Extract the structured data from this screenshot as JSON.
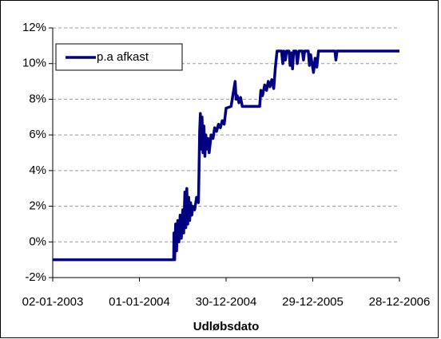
{
  "chart_data": {
    "type": "line",
    "x_label": "Udløbsdato",
    "x": [
      "2003-01-02",
      "2004-05-24",
      "2004-05-25",
      "2004-05-28",
      "2004-06-01",
      "2004-06-05",
      "2004-06-10",
      "2004-06-15",
      "2004-06-20",
      "2004-06-25",
      "2004-07-01",
      "2004-07-05",
      "2004-07-10",
      "2004-07-14",
      "2004-07-18",
      "2004-07-22",
      "2004-07-26",
      "2004-07-30",
      "2004-08-03",
      "2004-08-08",
      "2004-08-12",
      "2004-08-20",
      "2004-08-28",
      "2004-09-05",
      "2004-09-10",
      "2004-09-13",
      "2004-09-16",
      "2004-09-20",
      "2004-09-24",
      "2004-09-28",
      "2004-10-02",
      "2004-10-06",
      "2004-10-10",
      "2004-10-15",
      "2004-10-20",
      "2004-10-28",
      "2004-11-05",
      "2004-11-12",
      "2004-11-20",
      "2004-11-28",
      "2004-12-06",
      "2004-12-14",
      "2004-12-22",
      "2004-12-30",
      "2005-01-20",
      "2005-02-01",
      "2005-02-06",
      "2005-02-10",
      "2005-02-15",
      "2005-02-22",
      "2005-03-01",
      "2005-03-08",
      "2005-05-01",
      "2005-05-20",
      "2005-05-25",
      "2005-06-01",
      "2005-06-10",
      "2005-06-18",
      "2005-06-25",
      "2005-07-02",
      "2005-07-10",
      "2005-07-18",
      "2005-07-25",
      "2005-08-01",
      "2005-08-20",
      "2005-08-25",
      "2005-08-30",
      "2005-09-05",
      "2005-09-10",
      "2005-09-20",
      "2005-09-25",
      "2005-09-30",
      "2005-10-05",
      "2005-10-10",
      "2005-10-20",
      "2005-10-25",
      "2005-11-01",
      "2005-11-15",
      "2005-11-20",
      "2005-11-25",
      "2005-12-10",
      "2005-12-15",
      "2005-12-20",
      "2006-01-01",
      "2006-01-08",
      "2006-01-15",
      "2006-01-22",
      "2006-04-01",
      "2006-04-05",
      "2006-04-10",
      "2006-12-28"
    ],
    "series": [
      {
        "name": "p.a afkast",
        "color": "#000080",
        "values": [
          -1,
          -1,
          0.5,
          -1,
          1.0,
          -0.5,
          1.2,
          0,
          1.5,
          0.2,
          1.8,
          0.5,
          2.8,
          0.8,
          3.0,
          1.0,
          2.5,
          1.2,
          2.2,
          1.5,
          2.0,
          1.8,
          2.5,
          2.2,
          6.2,
          7.2,
          5.2,
          7.0,
          5.0,
          6.5,
          4.8,
          6.0,
          5.2,
          5.8,
          5.0,
          6.0,
          5.8,
          6.4,
          6.2,
          6.6,
          6.4,
          6.8,
          6.6,
          7.5,
          7.6,
          8.6,
          9.0,
          8.0,
          8.2,
          7.8,
          8.1,
          7.6,
          7.6,
          7.6,
          8.5,
          8.2,
          8.8,
          8.5,
          9.0,
          8.7,
          9.1,
          8.6,
          9.8,
          10.7,
          10.7,
          10.0,
          10.7,
          10.2,
          10.7,
          10.7,
          9.9,
          10.6,
          9.7,
          10.7,
          10.7,
          10.0,
          10.7,
          10.7,
          10.2,
          10.7,
          10.7,
          9.9,
          10.5,
          9.5,
          10.3,
          9.8,
          10.7,
          10.7,
          10.2,
          10.7,
          10.7
        ]
      }
    ],
    "xlim": [
      "2003-01-02",
      "2006-12-28"
    ],
    "xticks": [
      {
        "value": "2003-01-02",
        "label": "02-01-2003"
      },
      {
        "value": "2004-01-01",
        "label": "01-01-2004"
      },
      {
        "value": "2004-12-30",
        "label": "30-12-2004"
      },
      {
        "value": "2005-12-29",
        "label": "29-12-2005"
      },
      {
        "value": "2006-12-28",
        "label": "28-12-2006"
      }
    ],
    "ylim": [
      -2,
      12
    ],
    "yticks": [
      {
        "value": -2,
        "label": "-2%"
      },
      {
        "value": 0,
        "label": "0%"
      },
      {
        "value": 2,
        "label": "2%"
      },
      {
        "value": 4,
        "label": "4%"
      },
      {
        "value": 6,
        "label": "6%"
      },
      {
        "value": 8,
        "label": "8%"
      },
      {
        "value": 10,
        "label": "10%"
      },
      {
        "value": 12,
        "label": "12%"
      }
    ],
    "grid": true,
    "legend": "upper left"
  }
}
